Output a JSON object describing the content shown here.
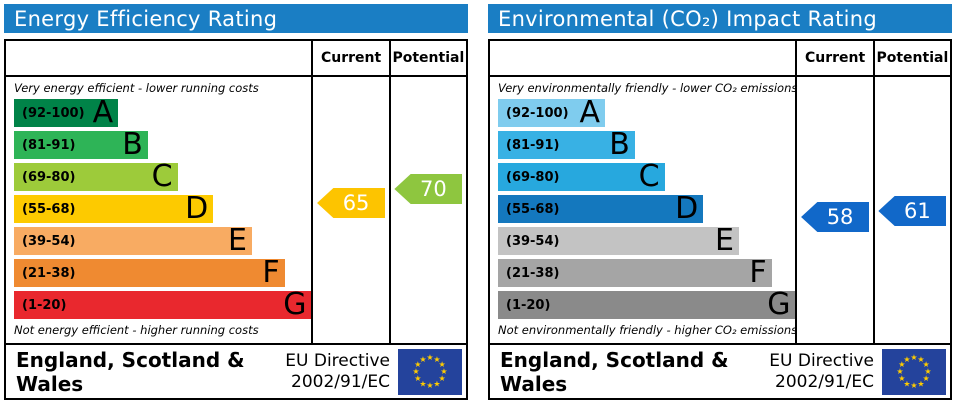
{
  "chart_data": [
    {
      "type": "epc_rating_bar",
      "title": "Energy Efficiency Rating",
      "header_color": "#1a7ec4",
      "columns": {
        "current": "Current",
        "potential": "Potential"
      },
      "top_caption": "Very energy efficient - lower running costs",
      "bottom_caption": "Not energy efficient - higher running costs",
      "scale": [
        1,
        100
      ],
      "bands": [
        {
          "letter": "A",
          "range_label": "(92-100)",
          "min": 92,
          "max": 100,
          "color": "#008348",
          "width_pct": 35
        },
        {
          "letter": "B",
          "range_label": "(81-91)",
          "min": 81,
          "max": 91,
          "color": "#2eb457",
          "width_pct": 45
        },
        {
          "letter": "C",
          "range_label": "(69-80)",
          "min": 69,
          "max": 80,
          "color": "#9dcb3a",
          "width_pct": 55
        },
        {
          "letter": "D",
          "range_label": "(55-68)",
          "min": 55,
          "max": 68,
          "color": "#fdca00",
          "width_pct": 67
        },
        {
          "letter": "E",
          "range_label": "(39-54)",
          "min": 39,
          "max": 54,
          "color": "#f8ab62",
          "width_pct": 80
        },
        {
          "letter": "F",
          "range_label": "(21-38)",
          "min": 21,
          "max": 38,
          "color": "#ef8a31",
          "width_pct": 91
        },
        {
          "letter": "G",
          "range_label": "(1-20)",
          "min": 1,
          "max": 20,
          "color": "#e9282e",
          "width_pct": 100
        }
      ],
      "current": {
        "value": 65,
        "band": "D",
        "color": "#fdc400"
      },
      "potential": {
        "value": 70,
        "band": "C",
        "color": "#8ec63f"
      },
      "footer": {
        "region": "England, Scotland & Wales",
        "directive_line1": "EU Directive",
        "directive_line2": "2002/91/EC"
      },
      "flag_colors": {
        "background": "#24439c",
        "stars": "#ffcc00"
      }
    },
    {
      "type": "epc_rating_bar",
      "title": "Environmental (CO₂) Impact Rating",
      "header_color": "#1a7ec4",
      "columns": {
        "current": "Current",
        "potential": "Potential"
      },
      "top_caption": "Very environmentally friendly - lower CO₂ emissions",
      "bottom_caption": "Not environmentally friendly - higher CO₂ emissions",
      "scale": [
        1,
        100
      ],
      "bands": [
        {
          "letter": "A",
          "range_label": "(92-100)",
          "min": 92,
          "max": 100,
          "color": "#7fccee",
          "width_pct": 36
        },
        {
          "letter": "B",
          "range_label": "(81-91)",
          "min": 81,
          "max": 91,
          "color": "#38b1e4",
          "width_pct": 46
        },
        {
          "letter": "C",
          "range_label": "(69-80)",
          "min": 69,
          "max": 80,
          "color": "#27a8de",
          "width_pct": 56
        },
        {
          "letter": "D",
          "range_label": "(55-68)",
          "min": 55,
          "max": 68,
          "color": "#1478be",
          "width_pct": 69
        },
        {
          "letter": "E",
          "range_label": "(39-54)",
          "min": 39,
          "max": 54,
          "color": "#c3c3c3",
          "width_pct": 81
        },
        {
          "letter": "F",
          "range_label": "(21-38)",
          "min": 21,
          "max": 38,
          "color": "#a5a5a5",
          "width_pct": 92
        },
        {
          "letter": "G",
          "range_label": "(1-20)",
          "min": 1,
          "max": 20,
          "color": "#8a8a8a",
          "width_pct": 100
        }
      ],
      "current": {
        "value": 58,
        "band": "D",
        "color": "#1168c9"
      },
      "potential": {
        "value": 61,
        "band": "D",
        "color": "#1168c9"
      },
      "footer": {
        "region": "England, Scotland & Wales",
        "directive_line1": "EU Directive",
        "directive_line2": "2002/91/EC"
      },
      "flag_colors": {
        "background": "#24439c",
        "stars": "#ffcc00"
      }
    }
  ]
}
